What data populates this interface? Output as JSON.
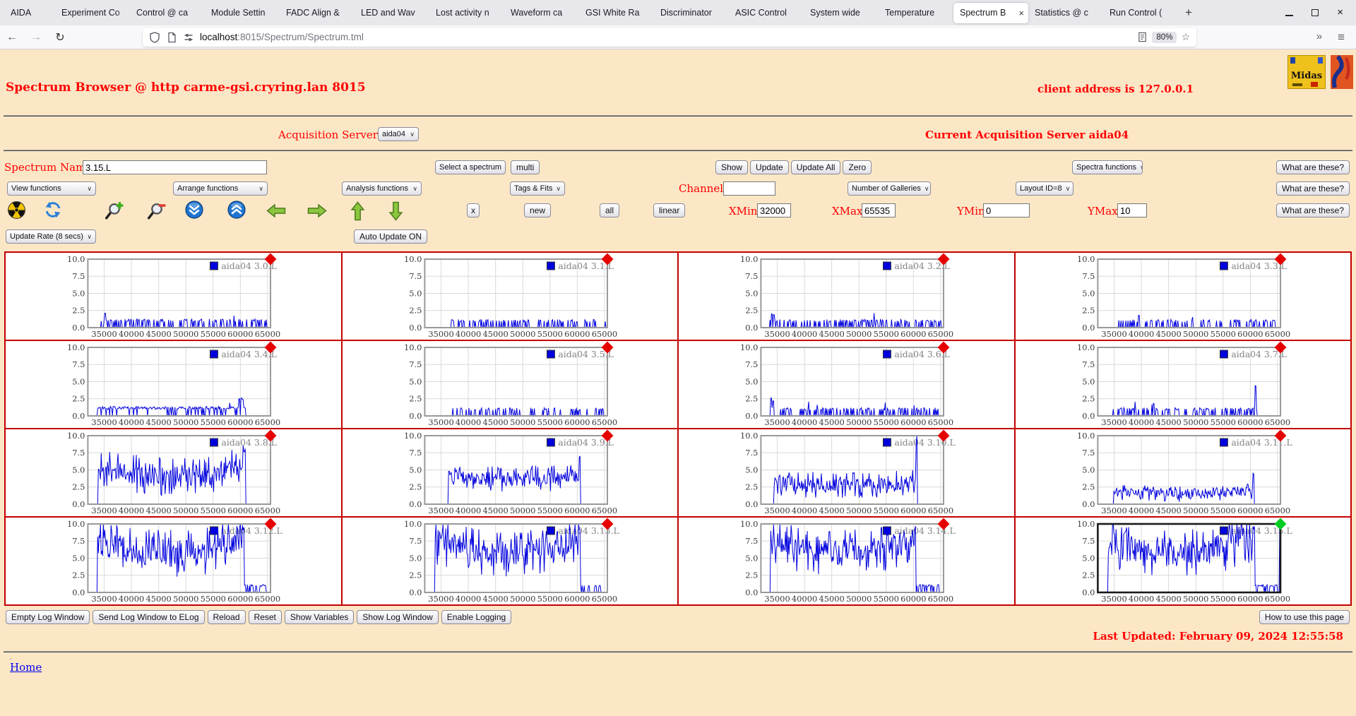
{
  "browser": {
    "tabs": [
      "AIDA",
      "Experiment Co",
      "Control @ ca",
      "Module Settin",
      "FADC Align &",
      "LED and Wav",
      "Lost activity n",
      "Waveform ca",
      "GSI White Ra",
      "Discriminator",
      "ASIC Control",
      "System wide",
      "Temperature",
      "Spectrum B",
      "Statistics @ c",
      "Run Control ("
    ],
    "active_tab_index": 13,
    "url_host": "localhost",
    "url_rest": ":8015/Spectrum/Spectrum.tml",
    "zoom_level": "80%"
  },
  "header": {
    "title": "Spectrum Browser @ http carme-gsi.cryring.lan 8015",
    "client": "client address is 127.0.0.1",
    "midas_logo_text": "Midas"
  },
  "acquisition": {
    "label": "Acquisition Servers",
    "selected": "aida04",
    "current": "Current Acquisition Server aida04"
  },
  "controls": {
    "spectrum_name_label": "Spectrum Name:",
    "spectrum_name_value": "3.15.L",
    "select_spectrum": "Select a spectrum",
    "multi": "multi",
    "show": "Show",
    "update": "Update",
    "update_all": "Update All",
    "zero": "Zero",
    "spectra_functions": "Spectra functions",
    "what_are_these": "What are these?",
    "view_functions": "View functions",
    "arrange_functions": "Arrange functions",
    "analysis_functions": "Analysis functions",
    "tags_fits": "Tags & Fits",
    "channel_label": "Channel:",
    "channel_value": "",
    "number_of_galleries": "Number of Galleries",
    "layout_id": "Layout ID=8",
    "x_close": "x",
    "new_label": "new",
    "all_label": "all",
    "linear_label": "linear",
    "xmin_label": "XMin",
    "xmin_value": "32000",
    "xmax_label": "XMax",
    "xmax_value": "65535",
    "ymin_label": "YMin",
    "ymin_value": "0",
    "ymax_label": "YMax",
    "ymax_value": "10",
    "update_rate": "Update Rate (8 secs)",
    "auto_update": "Auto Update ON",
    "toolbar_icons": [
      "radiation-icon",
      "refresh-icon",
      "zoom-in-icon",
      "zoom-out-icon",
      "scroll-down-icon",
      "scroll-up-icon",
      "arrow-left-icon",
      "arrow-right-icon",
      "arrow-up-icon",
      "arrow-down-icon"
    ]
  },
  "footer": {
    "buttons": [
      "Empty Log Window",
      "Send Log Window to ELog",
      "Reload",
      "Reset",
      "Show Variables",
      "Show Log Window",
      "Enable Logging"
    ],
    "help_button": "How to use this page",
    "last_updated": "Last Updated: February 09, 2024 12:55:58",
    "dot": ".",
    "home": "Home"
  },
  "colors": {
    "page_bg": "#fbe7c6",
    "label_red": "#ff0000",
    "grid_border": "#c40000",
    "data_blue": "#0000dd",
    "marker_red": "#e60000",
    "marker_green": "#00cc22"
  },
  "chart_data": {
    "type": "line",
    "x_ticks": [
      "35000",
      "40000",
      "45000",
      "50000",
      "55000",
      "60000",
      "65000"
    ],
    "y_ticks": [
      "10.0",
      "7.5",
      "5.0",
      "2.5",
      "0.0"
    ],
    "xmin": 32000,
    "xmax": 65535,
    "ymin": 0,
    "ymax": 10,
    "spectra": [
      {
        "label": "aida04 3.0.L",
        "marker": "#e60000",
        "seed": 101,
        "profile": {
          "kind": "sparse",
          "start": 34300,
          "end": 65200,
          "density": 0.42,
          "level": 1.05,
          "extras": [
            {
              "x": 35100,
              "h": 2.1
            }
          ]
        }
      },
      {
        "label": "aida04 3.1.L",
        "marker": "#e60000",
        "seed": 102,
        "profile": {
          "kind": "sparse",
          "start": 36800,
          "end": 65300,
          "density": 0.3,
          "level": 1.0,
          "extras": []
        }
      },
      {
        "label": "aida04 3.2.L",
        "marker": "#e60000",
        "seed": 103,
        "profile": {
          "kind": "sparse",
          "start": 33600,
          "end": 65300,
          "density": 0.4,
          "level": 1.0,
          "extras": [
            {
              "x": 34000,
              "h": 2.0
            },
            {
              "x": 34400,
              "h": 1.9
            }
          ]
        }
      },
      {
        "label": "aida04 3.3.L",
        "marker": "#e60000",
        "seed": 104,
        "profile": {
          "kind": "sparse",
          "start": 35600,
          "end": 65100,
          "density": 0.33,
          "level": 1.0,
          "extras": [
            {
              "x": 39500,
              "h": 1.8
            }
          ]
        }
      },
      {
        "label": "aida04 3.4.L",
        "marker": "#e60000",
        "seed": 105,
        "profile": {
          "kind": "sparse",
          "start": 33800,
          "end": 60900,
          "density": 0.8,
          "level": 1.15,
          "extras": [
            {
              "x": 59800,
              "h": 2.5
            },
            {
              "x": 60200,
              "h": 2.6
            },
            {
              "x": 60500,
              "h": 2.4
            }
          ]
        }
      },
      {
        "label": "aida04 3.5.L",
        "marker": "#e60000",
        "seed": 106,
        "profile": {
          "kind": "sparse",
          "start": 36200,
          "end": 65000,
          "density": 0.34,
          "level": 1.0,
          "extras": []
        }
      },
      {
        "label": "aida04 3.6.L",
        "marker": "#e60000",
        "seed": 107,
        "profile": {
          "kind": "sparse",
          "start": 33700,
          "end": 64900,
          "density": 0.36,
          "level": 1.0,
          "extras": [
            {
              "x": 33900,
              "h": 2.6
            },
            {
              "x": 34200,
              "h": 2.2
            }
          ]
        }
      },
      {
        "label": "aida04 3.7.L",
        "marker": "#e60000",
        "seed": 108,
        "profile": {
          "kind": "sparse",
          "start": 34600,
          "end": 61200,
          "density": 0.38,
          "level": 1.0,
          "extras": [
            {
              "x": 42200,
              "h": 1.8
            },
            {
              "x": 61000,
              "h": 4.4
            }
          ]
        }
      },
      {
        "label": "aida04 3.8.L",
        "marker": "#e60000",
        "seed": 109,
        "profile": {
          "kind": "band",
          "start": 33900,
          "drop": 60900,
          "lo": 3.0,
          "hi": 7.4,
          "sag": 1.2,
          "end_lift": 1.3,
          "end_rise": 8.4,
          "tail_level": 0,
          "tail_density": 0,
          "tail_end": 0,
          "extras": []
        }
      },
      {
        "label": "aida04 3.9.L",
        "marker": "#e60000",
        "seed": 110,
        "profile": {
          "kind": "band",
          "start": 36300,
          "drop": 60600,
          "lo": 2.5,
          "hi": 5.5,
          "sag": 0.4,
          "end_lift": 0.3,
          "end_rise": 7.2,
          "tail_level": 0,
          "tail_density": 0,
          "tail_end": 0,
          "extras": [
            {
              "x": 36400,
              "h": 4.8
            }
          ]
        }
      },
      {
        "label": "aida04 3.10.L",
        "marker": "#e60000",
        "seed": 111,
        "profile": {
          "kind": "band",
          "start": 34400,
          "drop": 60700,
          "lo": 1.6,
          "hi": 4.5,
          "sag": 0.3,
          "end_lift": 0.3,
          "end_rise": 10,
          "tail_level": 0,
          "tail_density": 0,
          "tail_end": 0,
          "extras": []
        }
      },
      {
        "label": "aida04 3.11.L",
        "marker": "#e60000",
        "seed": 112,
        "profile": {
          "kind": "band",
          "start": 34900,
          "drop": 60700,
          "lo": 0.8,
          "hi": 2.7,
          "sag": 0.2,
          "end_lift": 0.2,
          "end_rise": 5.0,
          "tail_level": 0,
          "tail_density": 0,
          "tail_end": 0,
          "extras": []
        }
      },
      {
        "label": "aida04 3.12.L",
        "marker": "#e60000",
        "seed": 113,
        "profile": {
          "kind": "band",
          "start": 33800,
          "drop": 60700,
          "lo": 4.6,
          "hi": 9.9,
          "sag": 1.6,
          "end_lift": 1.0,
          "end_rise": 10,
          "tail_level": 1.0,
          "tail_density": 0.55,
          "tail_end": 64900,
          "extras": []
        }
      },
      {
        "label": "aida04 3.13.L",
        "marker": "#e60000",
        "seed": 114,
        "profile": {
          "kind": "band",
          "start": 33900,
          "drop": 60600,
          "lo": 4.6,
          "hi": 9.9,
          "sag": 1.5,
          "end_lift": 1.0,
          "end_rise": 10,
          "tail_level": 1.0,
          "tail_density": 0.5,
          "tail_end": 64800,
          "extras": []
        }
      },
      {
        "label": "aida04 3.14.L",
        "marker": "#e60000",
        "seed": 115,
        "profile": {
          "kind": "band",
          "start": 33800,
          "drop": 60500,
          "lo": 4.6,
          "hi": 9.9,
          "sag": 1.4,
          "end_lift": 1.0,
          "end_rise": 10,
          "tail_level": 1.0,
          "tail_density": 0.5,
          "tail_end": 64700,
          "extras": []
        }
      },
      {
        "label": "aida04 3.15.L",
        "marker": "#00cc22",
        "seed": 116,
        "selected": true,
        "profile": {
          "kind": "band",
          "start": 33900,
          "drop": 60800,
          "lo": 4.4,
          "hi": 9.9,
          "sag": 1.5,
          "end_lift": 1.0,
          "end_rise": 10,
          "tail_level": 1.0,
          "tail_density": 0.55,
          "tail_end": 65000,
          "extras": [
            {
              "x": 65430,
              "h": 10
            }
          ]
        }
      }
    ]
  }
}
